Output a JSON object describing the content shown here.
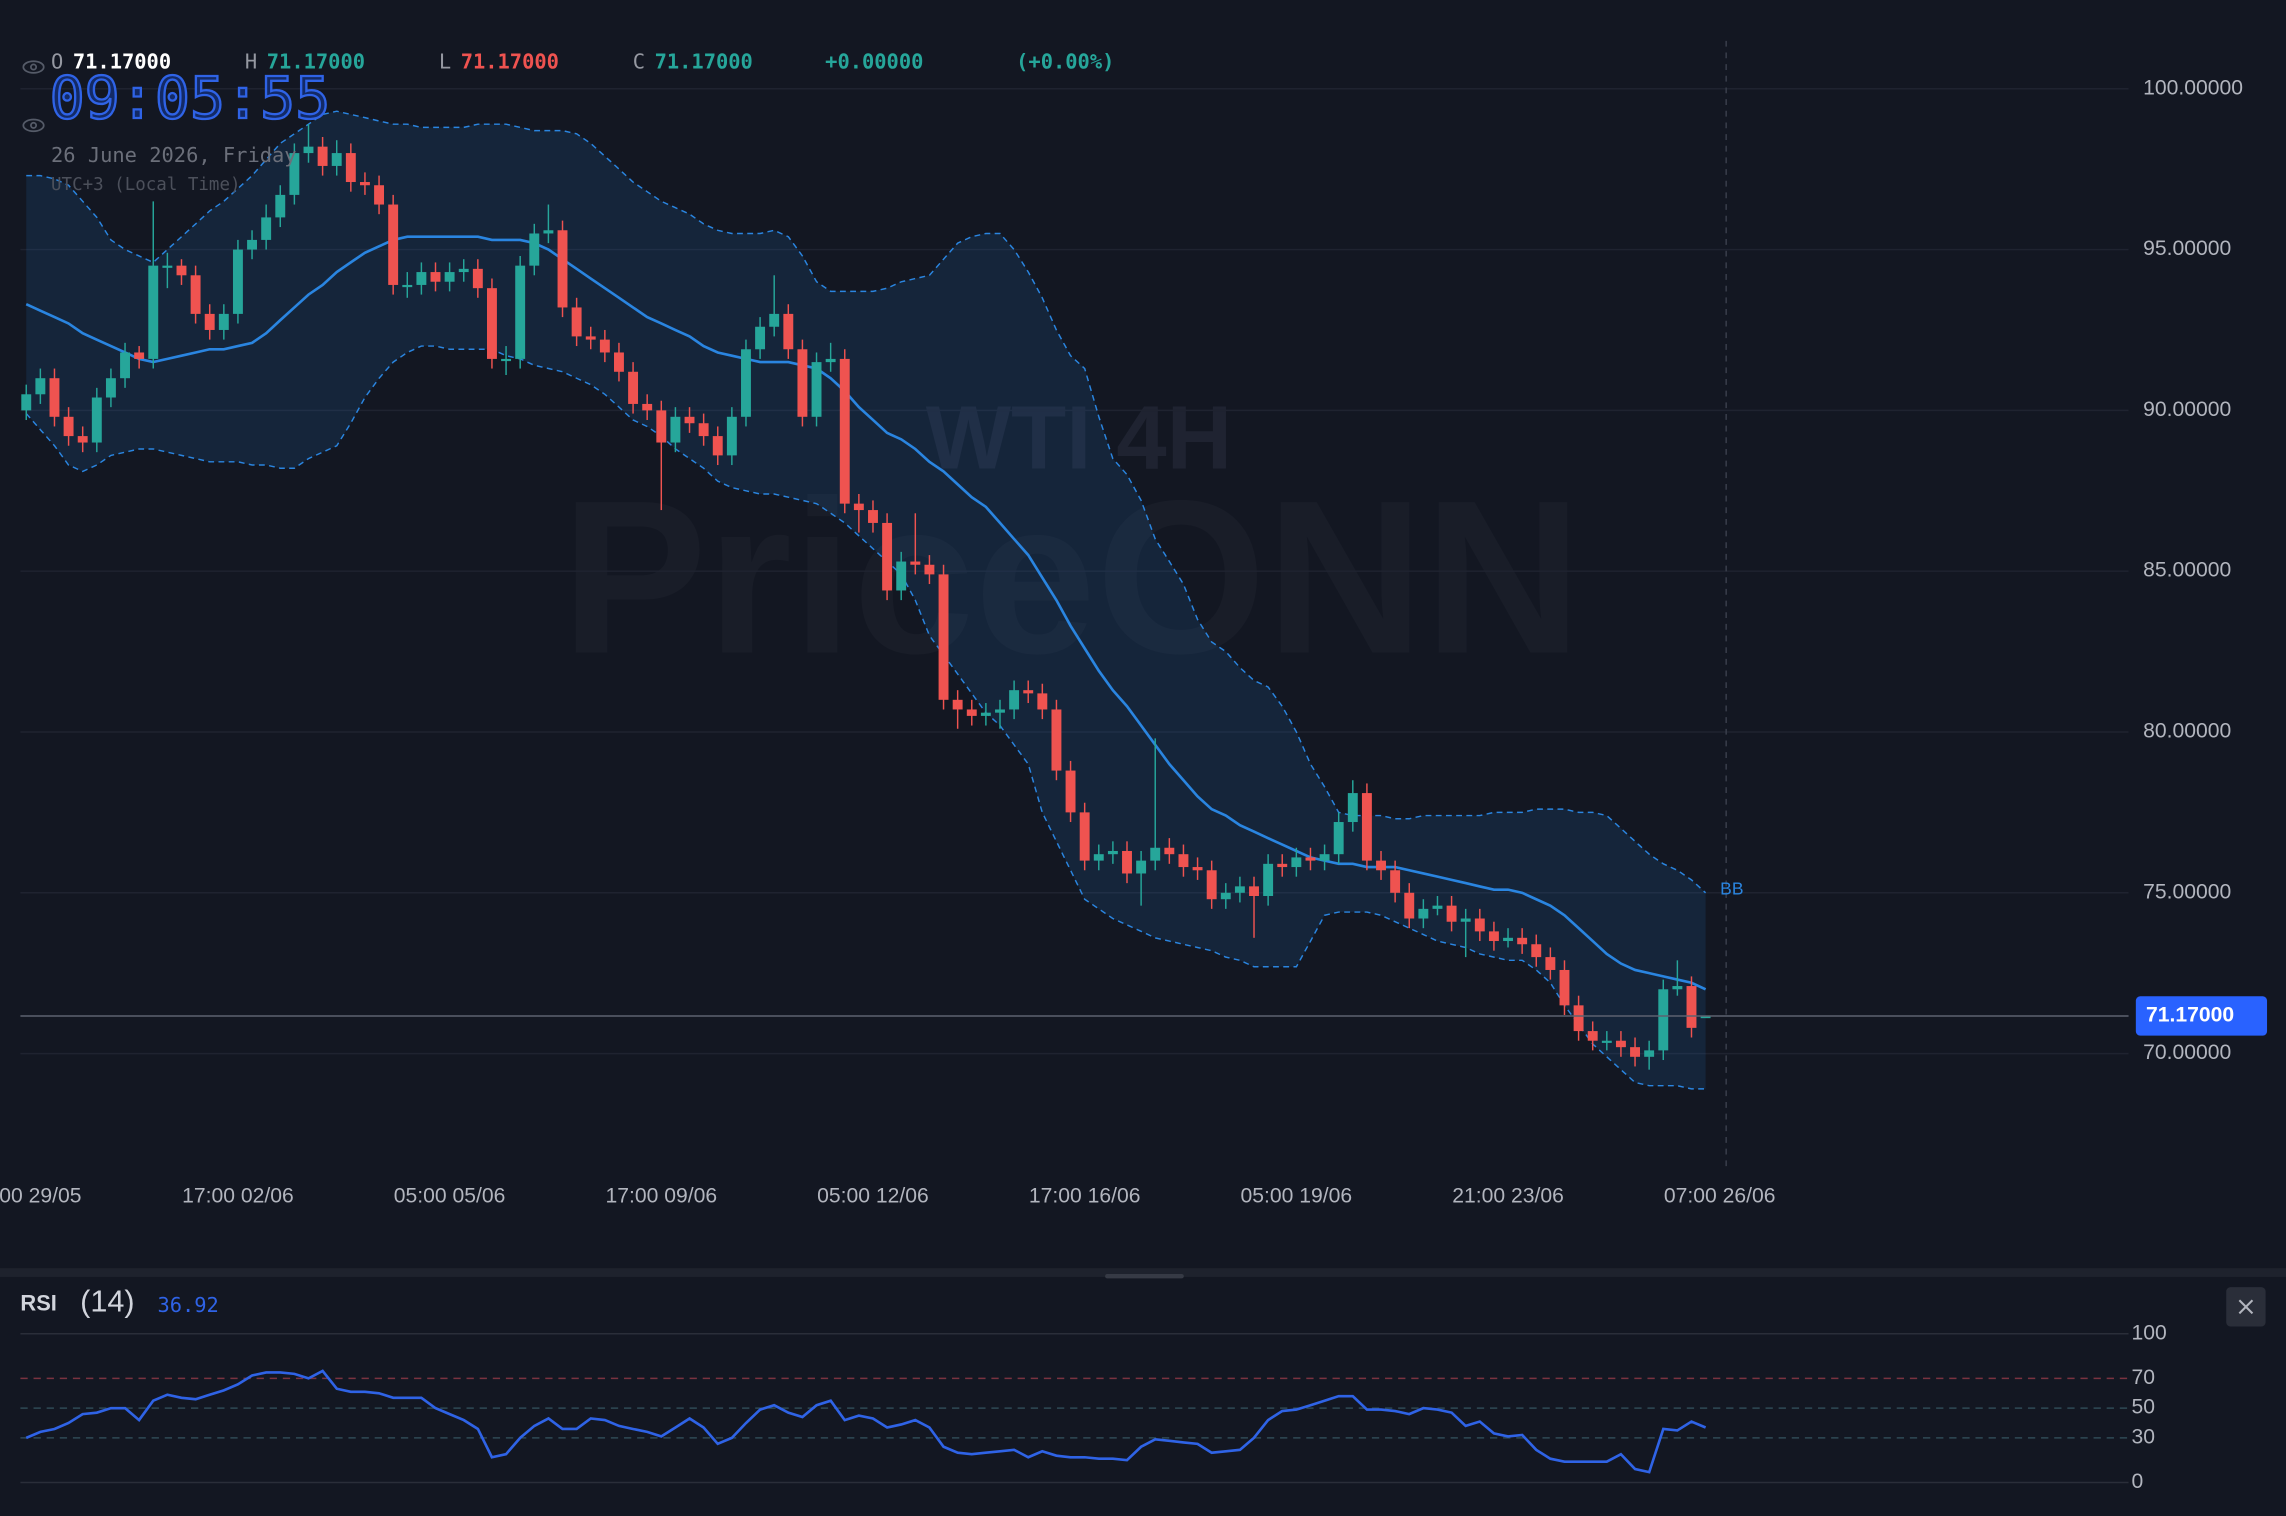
{
  "chart_data": {
    "type": "candlestick",
    "title": "WTI 4H",
    "watermark": "PriceONN",
    "clock": "09:05:55",
    "date": "26 June 2026, Friday",
    "timezone": "UTC+3 (Local Time)",
    "ohlc_legend": [
      {
        "label": "O",
        "value": "71.17000"
      },
      {
        "label": "H",
        "value": "71.17000"
      },
      {
        "label": "L",
        "value": "71.17000"
      },
      {
        "label": "C",
        "value": "71.17000"
      }
    ],
    "change": "+0.00000",
    "change_percent": "(+0.00%)",
    "colors": {
      "up": "#26a69a",
      "down": "#ef5350",
      "band": "#2a85e0"
    },
    "candles": [
      [
        90.0,
        90.8,
        89.7,
        90.5
      ],
      [
        90.5,
        91.3,
        90.2,
        91.0
      ],
      [
        91.0,
        91.3,
        89.5,
        89.8
      ],
      [
        89.8,
        90.1,
        88.9,
        89.2
      ],
      [
        89.2,
        89.5,
        88.7,
        89.0
      ],
      [
        89.0,
        90.7,
        88.7,
        90.4
      ],
      [
        90.4,
        91.3,
        90.1,
        91.0
      ],
      [
        91.0,
        92.1,
        90.7,
        91.8
      ],
      [
        91.8,
        92.0,
        91.3,
        91.6
      ],
      [
        91.6,
        96.5,
        91.3,
        94.5
      ],
      [
        94.5,
        94.9,
        93.8,
        94.5
      ],
      [
        94.5,
        94.7,
        93.9,
        94.2
      ],
      [
        94.2,
        94.5,
        92.7,
        93.0
      ],
      [
        93.0,
        93.3,
        92.2,
        92.5
      ],
      [
        92.5,
        93.3,
        92.2,
        93.0
      ],
      [
        93.0,
        95.3,
        92.7,
        95.0
      ],
      [
        95.0,
        95.6,
        94.7,
        95.3
      ],
      [
        95.3,
        96.4,
        95.0,
        96.0
      ],
      [
        96.0,
        97.0,
        95.7,
        96.7
      ],
      [
        96.7,
        98.3,
        96.4,
        98.0
      ],
      [
        98.0,
        98.9,
        97.7,
        98.2
      ],
      [
        98.2,
        98.5,
        97.3,
        97.6
      ],
      [
        97.6,
        98.4,
        97.3,
        98.0
      ],
      [
        98.0,
        98.3,
        96.8,
        97.1
      ],
      [
        97.1,
        97.4,
        96.7,
        97.0
      ],
      [
        97.0,
        97.3,
        96.1,
        96.4
      ],
      [
        96.4,
        96.7,
        93.6,
        93.9
      ],
      [
        93.9,
        94.3,
        93.5,
        93.9
      ],
      [
        93.9,
        94.6,
        93.6,
        94.3
      ],
      [
        94.3,
        94.6,
        93.7,
        94.0
      ],
      [
        94.0,
        94.6,
        93.7,
        94.3
      ],
      [
        94.3,
        94.7,
        94.0,
        94.4
      ],
      [
        94.4,
        94.7,
        93.5,
        93.8
      ],
      [
        93.8,
        94.1,
        91.3,
        91.6
      ],
      [
        91.6,
        92.0,
        91.1,
        91.6
      ],
      [
        91.6,
        94.8,
        91.3,
        94.5
      ],
      [
        94.5,
        95.8,
        94.2,
        95.5
      ],
      [
        95.5,
        96.4,
        95.2,
        95.6
      ],
      [
        95.6,
        95.9,
        92.9,
        93.2
      ],
      [
        93.2,
        93.5,
        92.0,
        92.3
      ],
      [
        92.3,
        92.6,
        91.9,
        92.2
      ],
      [
        92.2,
        92.5,
        91.5,
        91.8
      ],
      [
        91.8,
        92.1,
        90.9,
        91.2
      ],
      [
        91.2,
        91.5,
        89.9,
        90.2
      ],
      [
        90.2,
        90.5,
        89.7,
        90.0
      ],
      [
        90.0,
        90.3,
        86.9,
        89.0
      ],
      [
        89.0,
        90.1,
        88.7,
        89.8
      ],
      [
        89.8,
        90.1,
        89.3,
        89.6
      ],
      [
        89.6,
        89.9,
        88.9,
        89.2
      ],
      [
        89.2,
        89.5,
        88.3,
        88.6
      ],
      [
        88.6,
        90.1,
        88.3,
        89.8
      ],
      [
        89.8,
        92.2,
        89.5,
        91.9
      ],
      [
        91.9,
        92.9,
        91.6,
        92.6
      ],
      [
        92.6,
        94.2,
        92.3,
        93.0
      ],
      [
        93.0,
        93.3,
        91.6,
        91.9
      ],
      [
        91.9,
        92.2,
        89.5,
        89.8
      ],
      [
        89.8,
        91.8,
        89.5,
        91.5
      ],
      [
        91.5,
        92.1,
        91.2,
        91.6
      ],
      [
        91.6,
        91.9,
        86.8,
        87.1
      ],
      [
        87.1,
        87.4,
        86.2,
        86.9
      ],
      [
        86.9,
        87.2,
        86.2,
        86.5
      ],
      [
        86.5,
        86.8,
        84.1,
        84.4
      ],
      [
        84.4,
        85.6,
        84.1,
        85.3
      ],
      [
        85.3,
        86.8,
        84.9,
        85.2
      ],
      [
        85.2,
        85.5,
        84.6,
        84.9
      ],
      [
        84.9,
        85.2,
        80.7,
        81.0
      ],
      [
        81.0,
        81.3,
        80.1,
        80.7
      ],
      [
        80.7,
        81.0,
        80.2,
        80.5
      ],
      [
        80.5,
        80.9,
        80.2,
        80.6
      ],
      [
        80.6,
        81.0,
        80.1,
        80.7
      ],
      [
        80.7,
        81.6,
        80.4,
        81.3
      ],
      [
        81.3,
        81.6,
        80.9,
        81.2
      ],
      [
        81.2,
        81.5,
        80.4,
        80.7
      ],
      [
        80.7,
        81.0,
        78.5,
        78.8
      ],
      [
        78.8,
        79.1,
        77.2,
        77.5
      ],
      [
        77.5,
        77.8,
        75.7,
        76.0
      ],
      [
        76.0,
        76.5,
        75.7,
        76.2
      ],
      [
        76.2,
        76.6,
        75.9,
        76.3
      ],
      [
        76.3,
        76.6,
        75.3,
        75.6
      ],
      [
        75.6,
        76.3,
        74.6,
        76.0
      ],
      [
        76.0,
        79.8,
        75.7,
        76.4
      ],
      [
        76.4,
        76.7,
        75.9,
        76.2
      ],
      [
        76.2,
        76.5,
        75.5,
        75.8
      ],
      [
        75.8,
        76.1,
        75.4,
        75.7
      ],
      [
        75.7,
        76.0,
        74.5,
        74.8
      ],
      [
        74.8,
        75.3,
        74.5,
        75.0
      ],
      [
        75.0,
        75.5,
        74.7,
        75.2
      ],
      [
        75.2,
        75.5,
        73.6,
        74.9
      ],
      [
        74.9,
        76.2,
        74.6,
        75.9
      ],
      [
        75.9,
        76.2,
        75.5,
        75.8
      ],
      [
        75.8,
        76.4,
        75.5,
        76.1
      ],
      [
        76.1,
        76.4,
        75.7,
        76.0
      ],
      [
        76.0,
        76.5,
        75.7,
        76.2
      ],
      [
        76.2,
        77.5,
        75.9,
        77.2
      ],
      [
        77.2,
        78.5,
        76.9,
        78.1
      ],
      [
        78.1,
        78.4,
        75.7,
        76.0
      ],
      [
        76.0,
        76.3,
        75.4,
        75.7
      ],
      [
        75.7,
        76.0,
        74.7,
        75.0
      ],
      [
        75.0,
        75.3,
        73.9,
        74.2
      ],
      [
        74.2,
        74.8,
        73.9,
        74.5
      ],
      [
        74.5,
        74.9,
        74.3,
        74.6
      ],
      [
        74.6,
        74.9,
        73.8,
        74.1
      ],
      [
        74.1,
        74.5,
        73.0,
        74.2
      ],
      [
        74.2,
        74.5,
        73.5,
        73.8
      ],
      [
        73.8,
        74.1,
        73.2,
        73.5
      ],
      [
        73.5,
        73.9,
        73.3,
        73.6
      ],
      [
        73.6,
        73.9,
        73.1,
        73.4
      ],
      [
        73.4,
        73.7,
        72.7,
        73.0
      ],
      [
        73.0,
        73.3,
        72.3,
        72.6
      ],
      [
        72.6,
        72.9,
        71.2,
        71.5
      ],
      [
        71.5,
        71.8,
        70.4,
        70.7
      ],
      [
        70.7,
        71.0,
        70.1,
        70.4
      ],
      [
        70.4,
        70.7,
        70.1,
        70.4
      ],
      [
        70.4,
        70.7,
        69.9,
        70.2
      ],
      [
        70.2,
        70.5,
        69.6,
        69.9
      ],
      [
        69.9,
        70.4,
        69.5,
        70.1
      ],
      [
        70.1,
        72.3,
        69.8,
        72.0
      ],
      [
        72.0,
        72.9,
        71.8,
        72.1
      ],
      [
        72.1,
        72.4,
        70.5,
        70.8
      ],
      [
        71.17,
        71.17,
        71.17,
        71.17
      ]
    ],
    "xlim": [
      -1.86,
      148.97
    ],
    "xticks": [
      {
        "value": 1,
        "label": "00 29/05"
      },
      {
        "value": 15,
        "label": "17:00 02/06"
      },
      {
        "value": 30,
        "label": "05:00 05/06"
      },
      {
        "value": 45,
        "label": "17:00 09/06"
      },
      {
        "value": 60,
        "label": "05:00 12/06"
      },
      {
        "value": 75,
        "label": "17:00 16/06"
      },
      {
        "value": 90,
        "label": "05:00 19/06"
      },
      {
        "value": 105,
        "label": "21:00 23/06"
      },
      {
        "value": 120,
        "label": "07:00 26/06"
      }
    ],
    "ylim": [
      66.5,
      101.4
    ],
    "yticks": [
      {
        "value": 70,
        "label": "70.00000"
      },
      {
        "value": 75,
        "label": "75.00000"
      },
      {
        "value": 80,
        "label": "80.00000"
      },
      {
        "value": 85,
        "label": "85.00000"
      },
      {
        "value": 90,
        "label": "90.00000"
      },
      {
        "value": 95,
        "label": "95.00000"
      },
      {
        "value": 100,
        "label": "100.00000"
      }
    ],
    "grid": true,
    "last_price": {
      "value": 71.17,
      "label": "71.17000"
    },
    "indicator": {
      "name": "BB",
      "upper": [
        97.3,
        97.3,
        97.2,
        97.0,
        96.5,
        96.0,
        95.3,
        95.0,
        94.8,
        94.6,
        95.0,
        95.4,
        95.8,
        96.2,
        96.5,
        96.9,
        97.3,
        97.8,
        98.3,
        98.6,
        98.9,
        99.2,
        99.3,
        99.2,
        99.1,
        99.0,
        98.9,
        98.9,
        98.8,
        98.8,
        98.8,
        98.8,
        98.9,
        98.9,
        98.9,
        98.8,
        98.7,
        98.7,
        98.7,
        98.6,
        98.3,
        97.9,
        97.5,
        97.1,
        96.8,
        96.5,
        96.3,
        96.1,
        95.8,
        95.6,
        95.5,
        95.5,
        95.5,
        95.6,
        95.4,
        94.8,
        94.0,
        93.7,
        93.7,
        93.7,
        93.7,
        93.8,
        94.0,
        94.1,
        94.2,
        94.7,
        95.2,
        95.4,
        95.5,
        95.5,
        95.0,
        94.3,
        93.5,
        92.5,
        91.7,
        91.3,
        89.8,
        88.5,
        88.0,
        87.2,
        86.0,
        85.3,
        84.6,
        83.5,
        82.8,
        82.5,
        82.0,
        81.6,
        81.4,
        80.8,
        80.0,
        79.0,
        78.3,
        77.5,
        77.4,
        77.4,
        77.4,
        77.3,
        77.3,
        77.4,
        77.4,
        77.4,
        77.4,
        77.4,
        77.5,
        77.5,
        77.5,
        77.6,
        77.6,
        77.6,
        77.5,
        77.5,
        77.4,
        77.0,
        76.6,
        76.2,
        75.9,
        75.7,
        75.4,
        75.0
      ],
      "middle": [
        93.3,
        93.1,
        92.9,
        92.7,
        92.4,
        92.2,
        92.0,
        91.8,
        91.6,
        91.5,
        91.6,
        91.7,
        91.8,
        91.9,
        91.9,
        92.0,
        92.1,
        92.4,
        92.8,
        93.2,
        93.6,
        93.9,
        94.3,
        94.6,
        94.9,
        95.1,
        95.3,
        95.4,
        95.4,
        95.4,
        95.4,
        95.4,
        95.4,
        95.3,
        95.3,
        95.3,
        95.2,
        95.0,
        94.7,
        94.4,
        94.1,
        93.8,
        93.5,
        93.2,
        92.9,
        92.7,
        92.5,
        92.3,
        92.0,
        91.8,
        91.7,
        91.6,
        91.5,
        91.5,
        91.5,
        91.4,
        91.3,
        91.0,
        90.6,
        90.1,
        89.7,
        89.3,
        89.1,
        88.8,
        88.4,
        88.1,
        87.7,
        87.3,
        87.0,
        86.5,
        86.0,
        85.5,
        84.8,
        84.1,
        83.3,
        82.6,
        81.9,
        81.3,
        80.8,
        80.2,
        79.6,
        79.0,
        78.5,
        78.0,
        77.6,
        77.4,
        77.1,
        76.9,
        76.7,
        76.5,
        76.3,
        76.1,
        76.0,
        75.9,
        75.9,
        75.8,
        75.8,
        75.8,
        75.7,
        75.6,
        75.5,
        75.4,
        75.3,
        75.2,
        75.1,
        75.1,
        75.0,
        74.8,
        74.6,
        74.3,
        73.9,
        73.5,
        73.1,
        72.8,
        72.6,
        72.5,
        72.4,
        72.3,
        72.2,
        72.0
      ],
      "lower": [
        89.9,
        89.4,
        88.9,
        88.3,
        88.1,
        88.3,
        88.6,
        88.7,
        88.8,
        88.8,
        88.7,
        88.6,
        88.5,
        88.4,
        88.4,
        88.4,
        88.3,
        88.3,
        88.2,
        88.2,
        88.5,
        88.7,
        88.9,
        89.6,
        90.4,
        91.0,
        91.5,
        91.8,
        92.0,
        92.0,
        91.9,
        91.9,
        91.9,
        91.9,
        91.7,
        91.6,
        91.4,
        91.3,
        91.2,
        91.0,
        90.8,
        90.5,
        90.1,
        89.7,
        89.5,
        89.2,
        88.8,
        88.5,
        88.2,
        87.8,
        87.6,
        87.5,
        87.4,
        87.4,
        87.3,
        87.2,
        87.1,
        86.8,
        86.5,
        86.1,
        85.7,
        85.3,
        84.9,
        84.1,
        83.0,
        82.4,
        81.8,
        81.2,
        80.6,
        80.2,
        79.6,
        79.0,
        77.5,
        76.6,
        75.7,
        74.8,
        74.5,
        74.2,
        74.0,
        73.8,
        73.6,
        73.5,
        73.4,
        73.3,
        73.2,
        73.0,
        72.9,
        72.7,
        72.7,
        72.7,
        72.7,
        73.5,
        74.3,
        74.4,
        74.4,
        74.4,
        74.3,
        74.1,
        73.9,
        73.7,
        73.5,
        73.4,
        73.3,
        73.1,
        73.0,
        72.9,
        72.9,
        72.6,
        72.2,
        71.5,
        70.9,
        70.3,
        69.9,
        69.5,
        69.1,
        69.0,
        69.0,
        69.0,
        68.9,
        68.9
      ]
    },
    "rsi": {
      "name": "RSI",
      "period": "(14)",
      "ylim": [
        0,
        100
      ],
      "yticks": [
        0,
        30,
        50,
        70,
        100
      ],
      "values": [
        30,
        34,
        36,
        40,
        46,
        47,
        50,
        50,
        42,
        55,
        59,
        57,
        56,
        59,
        62,
        66,
        72,
        74,
        74,
        73,
        70,
        75,
        63,
        61,
        61,
        60,
        57,
        57,
        57,
        50,
        46,
        42,
        36,
        17,
        19,
        30,
        38,
        43,
        36,
        36,
        43,
        42,
        38,
        36,
        34,
        31,
        37,
        43,
        37,
        26,
        30,
        40,
        49,
        52,
        47,
        44,
        52,
        55,
        42,
        45,
        43,
        37,
        39,
        42,
        37,
        24,
        20,
        19,
        20,
        21,
        22,
        17,
        21,
        18,
        17,
        17,
        16,
        16,
        15,
        24,
        29,
        28,
        27,
        26,
        20,
        21,
        22,
        30,
        42,
        48,
        49,
        52,
        55,
        58,
        58,
        49,
        49,
        48,
        46,
        50,
        49,
        47,
        38,
        41,
        33,
        31,
        32,
        22,
        16,
        14,
        14,
        14,
        14,
        19,
        9,
        7,
        36,
        35,
        41,
        36.92
      ]
    }
  }
}
